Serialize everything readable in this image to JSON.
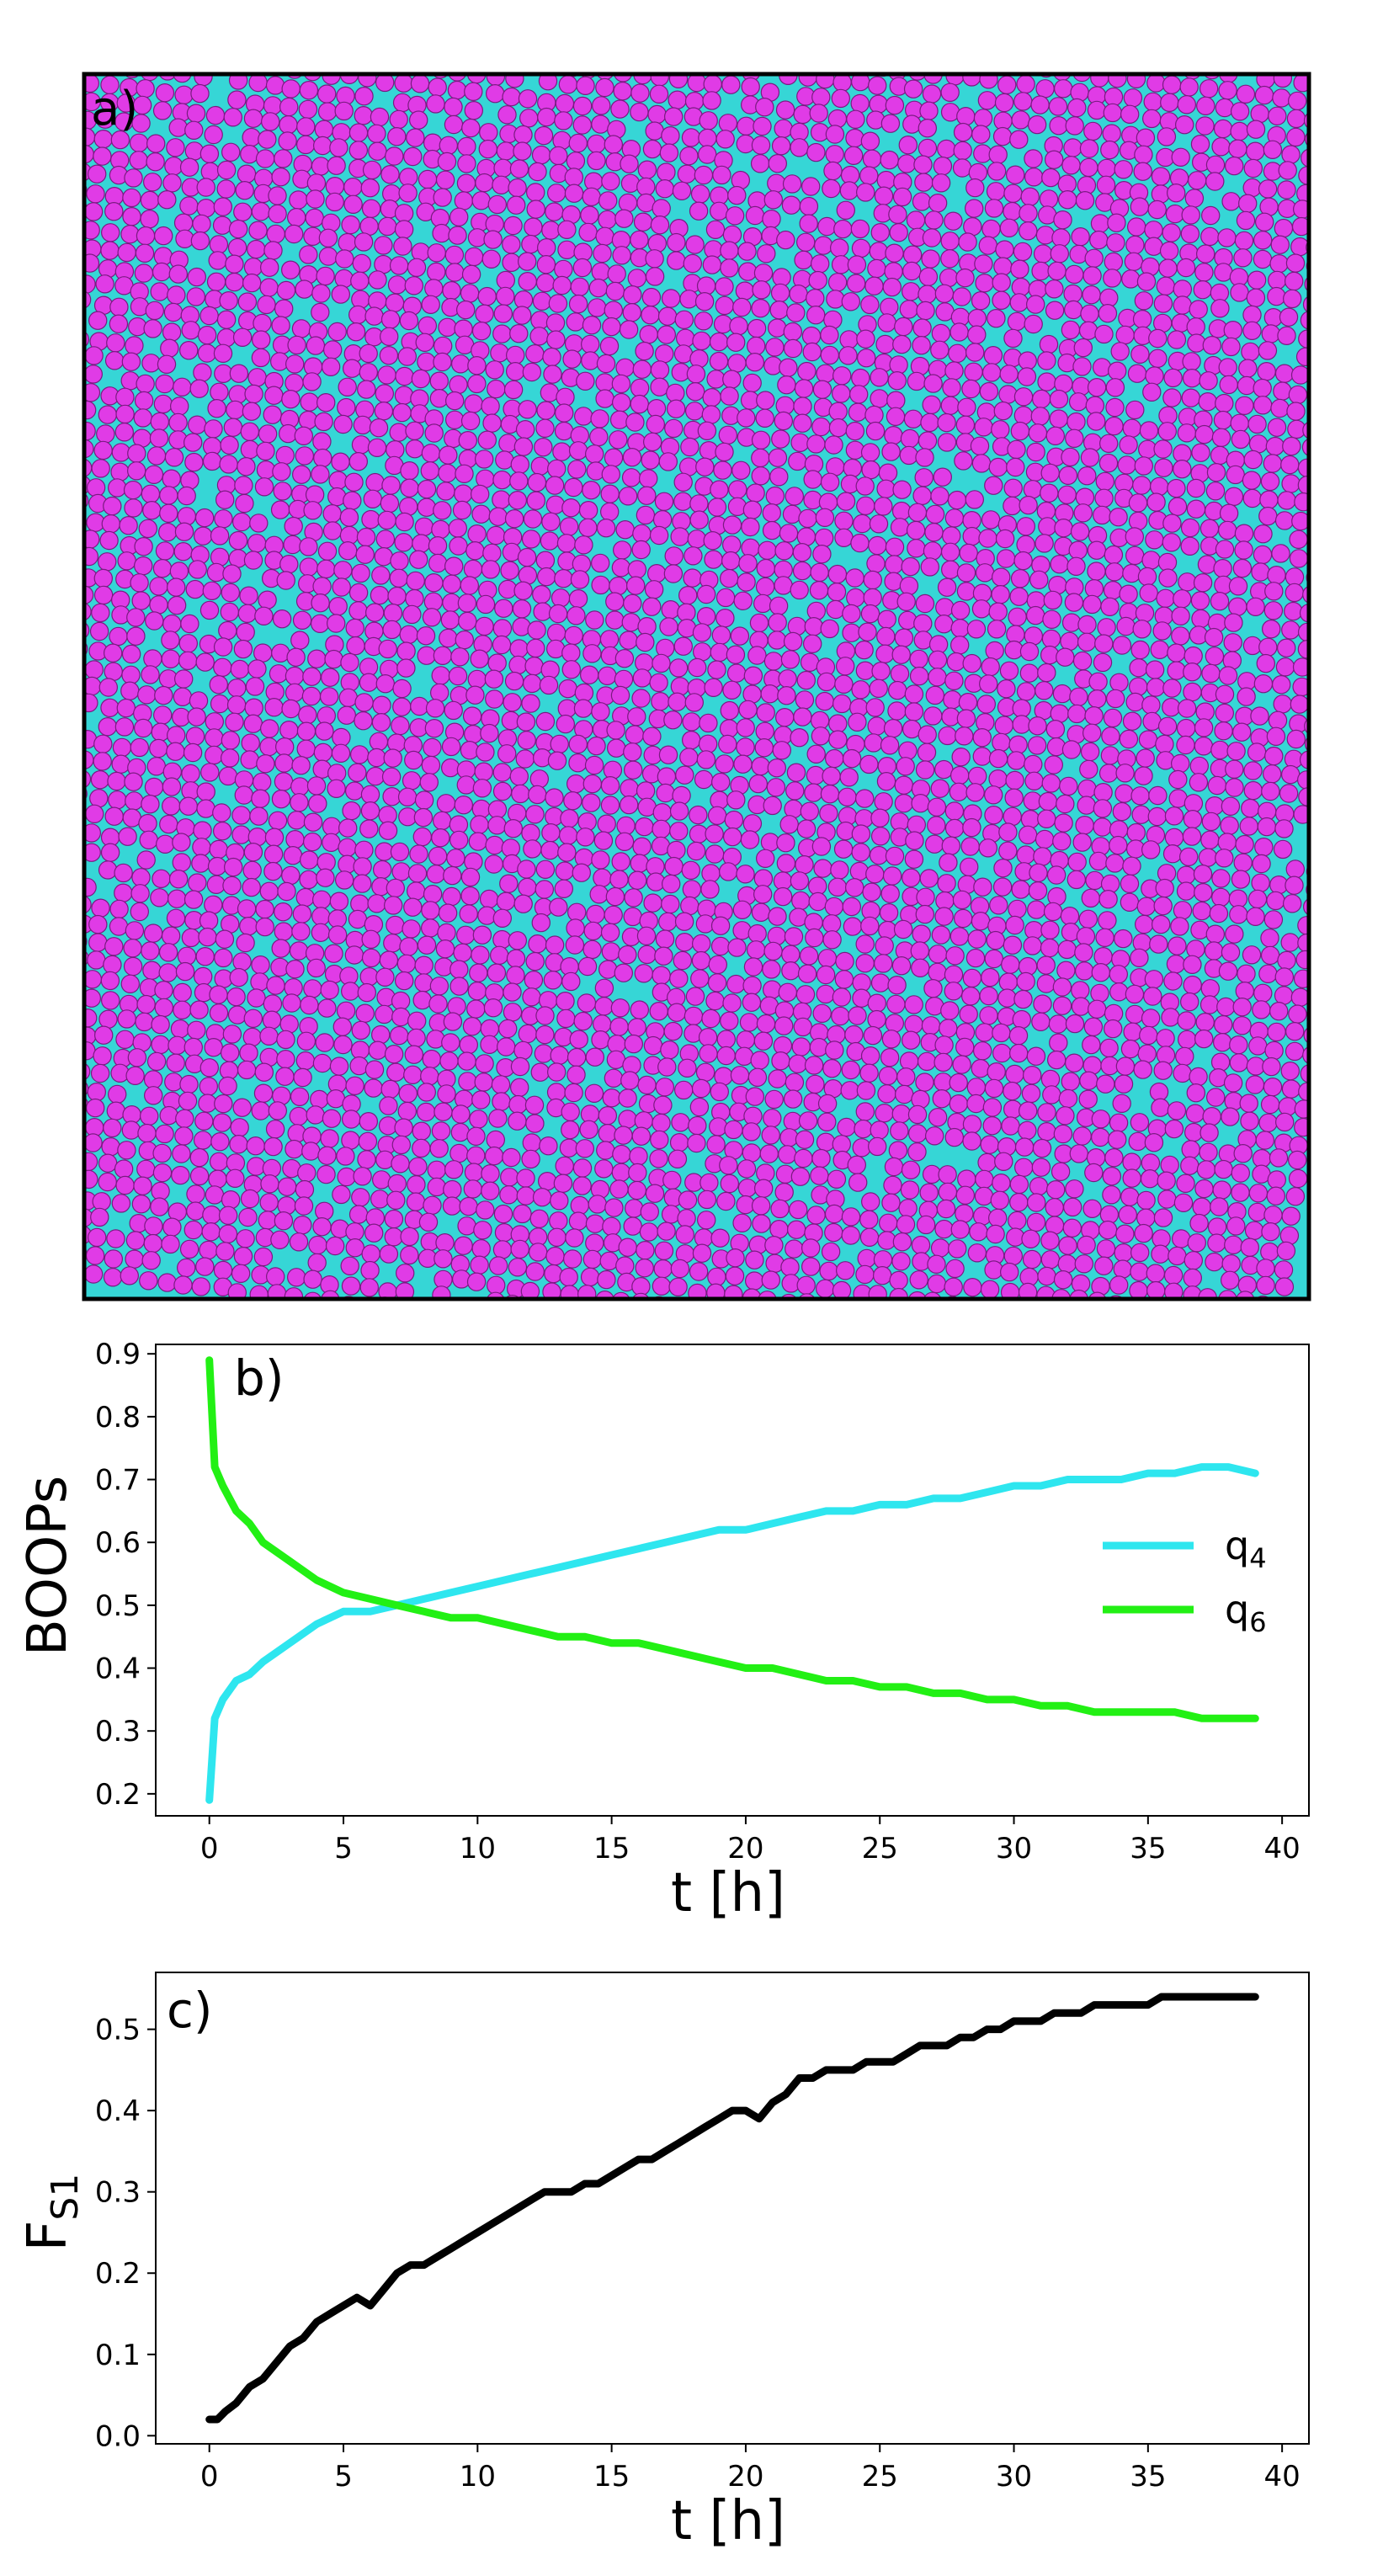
{
  "panels": {
    "a": {
      "label": "a)",
      "particle_color": "#e03be6",
      "particle_edge": "#7a1a80",
      "background_color": "#36d6d6"
    },
    "b": {
      "label": "b)"
    },
    "c": {
      "label": "c)"
    }
  },
  "colors": {
    "q4": "#2ee6ef",
    "q6": "#22f014",
    "fs1": "#000000",
    "axis": "#000000"
  },
  "chart_data": [
    {
      "panel": "a",
      "type": "other",
      "description_label": "a)"
    },
    {
      "panel": "b",
      "type": "line",
      "xlabel": "t [h]",
      "ylabel": "BOOPs",
      "xlim": [
        -2,
        41
      ],
      "ylim": [
        0.165,
        0.915
      ],
      "xticks": [
        0,
        5,
        10,
        15,
        20,
        25,
        30,
        35,
        40
      ],
      "yticks": [
        0.2,
        0.3,
        0.4,
        0.5,
        0.6,
        0.7,
        0.8,
        0.9
      ],
      "ytick_labels": [
        "0.2",
        "0.3",
        "0.4",
        "0.5",
        "0.6",
        "0.7",
        "0.8",
        "0.9"
      ],
      "legend_position": "right",
      "series": [
        {
          "name": "q4",
          "name_base": "q",
          "name_sub": "4",
          "color": "#2ee6ef",
          "x": [
            0,
            0.2,
            0.5,
            1,
            1.5,
            2,
            3,
            4,
            5,
            6,
            7,
            8,
            9,
            10,
            11,
            12,
            13,
            14,
            15,
            16,
            17,
            18,
            19,
            20,
            21,
            22,
            23,
            24,
            25,
            26,
            27,
            28,
            29,
            30,
            31,
            32,
            33,
            34,
            35,
            36,
            37,
            38,
            39
          ],
          "values": [
            0.19,
            0.32,
            0.35,
            0.38,
            0.39,
            0.41,
            0.44,
            0.47,
            0.49,
            0.49,
            0.5,
            0.51,
            0.52,
            0.53,
            0.54,
            0.55,
            0.56,
            0.57,
            0.58,
            0.59,
            0.6,
            0.61,
            0.62,
            0.62,
            0.63,
            0.64,
            0.65,
            0.65,
            0.66,
            0.66,
            0.67,
            0.67,
            0.68,
            0.69,
            0.69,
            0.7,
            0.7,
            0.7,
            0.71,
            0.71,
            0.72,
            0.72,
            0.71
          ]
        },
        {
          "name": "q6",
          "name_base": "q",
          "name_sub": "6",
          "color": "#22f014",
          "x": [
            0,
            0.2,
            0.5,
            1,
            1.5,
            2,
            3,
            4,
            5,
            6,
            7,
            8,
            9,
            10,
            11,
            12,
            13,
            14,
            15,
            16,
            17,
            18,
            19,
            20,
            21,
            22,
            23,
            24,
            25,
            26,
            27,
            28,
            29,
            30,
            31,
            32,
            33,
            34,
            35,
            36,
            37,
            38,
            39
          ],
          "values": [
            0.89,
            0.72,
            0.69,
            0.65,
            0.63,
            0.6,
            0.57,
            0.54,
            0.52,
            0.51,
            0.5,
            0.49,
            0.48,
            0.48,
            0.47,
            0.46,
            0.45,
            0.45,
            0.44,
            0.44,
            0.43,
            0.42,
            0.41,
            0.4,
            0.4,
            0.39,
            0.38,
            0.38,
            0.37,
            0.37,
            0.36,
            0.36,
            0.35,
            0.35,
            0.34,
            0.34,
            0.33,
            0.33,
            0.33,
            0.33,
            0.32,
            0.32,
            0.32
          ]
        }
      ]
    },
    {
      "panel": "c",
      "type": "line",
      "xlabel": "t [h]",
      "ylabel": "FS1",
      "ylabel_base": "F",
      "ylabel_sub": "S1",
      "xlim": [
        -2,
        41
      ],
      "ylim": [
        -0.01,
        0.57
      ],
      "xticks": [
        0,
        5,
        10,
        15,
        20,
        25,
        30,
        35,
        40
      ],
      "yticks": [
        0.0,
        0.1,
        0.2,
        0.3,
        0.4,
        0.5
      ],
      "ytick_labels": [
        "0.0",
        "0.1",
        "0.2",
        "0.3",
        "0.4",
        "0.5"
      ],
      "series": [
        {
          "name": "",
          "color": "#000000",
          "x": [
            0,
            0.3,
            0.6,
            1,
            1.5,
            2,
            2.5,
            3,
            3.5,
            4,
            4.5,
            5,
            5.5,
            6,
            6.5,
            7,
            7.5,
            8,
            8.5,
            9,
            9.5,
            10,
            10.5,
            11,
            11.5,
            12,
            12.5,
            13,
            13.5,
            14,
            14.5,
            15,
            15.5,
            16,
            16.5,
            17,
            17.5,
            18,
            18.5,
            19,
            19.5,
            20,
            20.5,
            21,
            21.5,
            22,
            22.5,
            23,
            23.5,
            24,
            24.5,
            25,
            25.5,
            26,
            26.5,
            27,
            27.5,
            28,
            28.5,
            29,
            29.5,
            30,
            30.5,
            31,
            31.5,
            32,
            32.5,
            33,
            33.5,
            34,
            34.5,
            35,
            35.5,
            36,
            36.5,
            37,
            37.5,
            38,
            38.5,
            39
          ],
          "values": [
            0.02,
            0.02,
            0.03,
            0.04,
            0.06,
            0.07,
            0.09,
            0.11,
            0.12,
            0.14,
            0.15,
            0.16,
            0.17,
            0.16,
            0.18,
            0.2,
            0.21,
            0.21,
            0.22,
            0.23,
            0.24,
            0.25,
            0.26,
            0.27,
            0.28,
            0.29,
            0.3,
            0.3,
            0.3,
            0.31,
            0.31,
            0.32,
            0.33,
            0.34,
            0.34,
            0.35,
            0.36,
            0.37,
            0.38,
            0.39,
            0.4,
            0.4,
            0.39,
            0.41,
            0.42,
            0.44,
            0.44,
            0.45,
            0.45,
            0.45,
            0.46,
            0.46,
            0.46,
            0.47,
            0.48,
            0.48,
            0.48,
            0.49,
            0.49,
            0.5,
            0.5,
            0.51,
            0.51,
            0.51,
            0.52,
            0.52,
            0.52,
            0.53,
            0.53,
            0.53,
            0.53,
            0.53,
            0.54,
            0.54,
            0.54,
            0.54,
            0.54,
            0.54,
            0.54,
            0.54
          ]
        }
      ]
    }
  ]
}
